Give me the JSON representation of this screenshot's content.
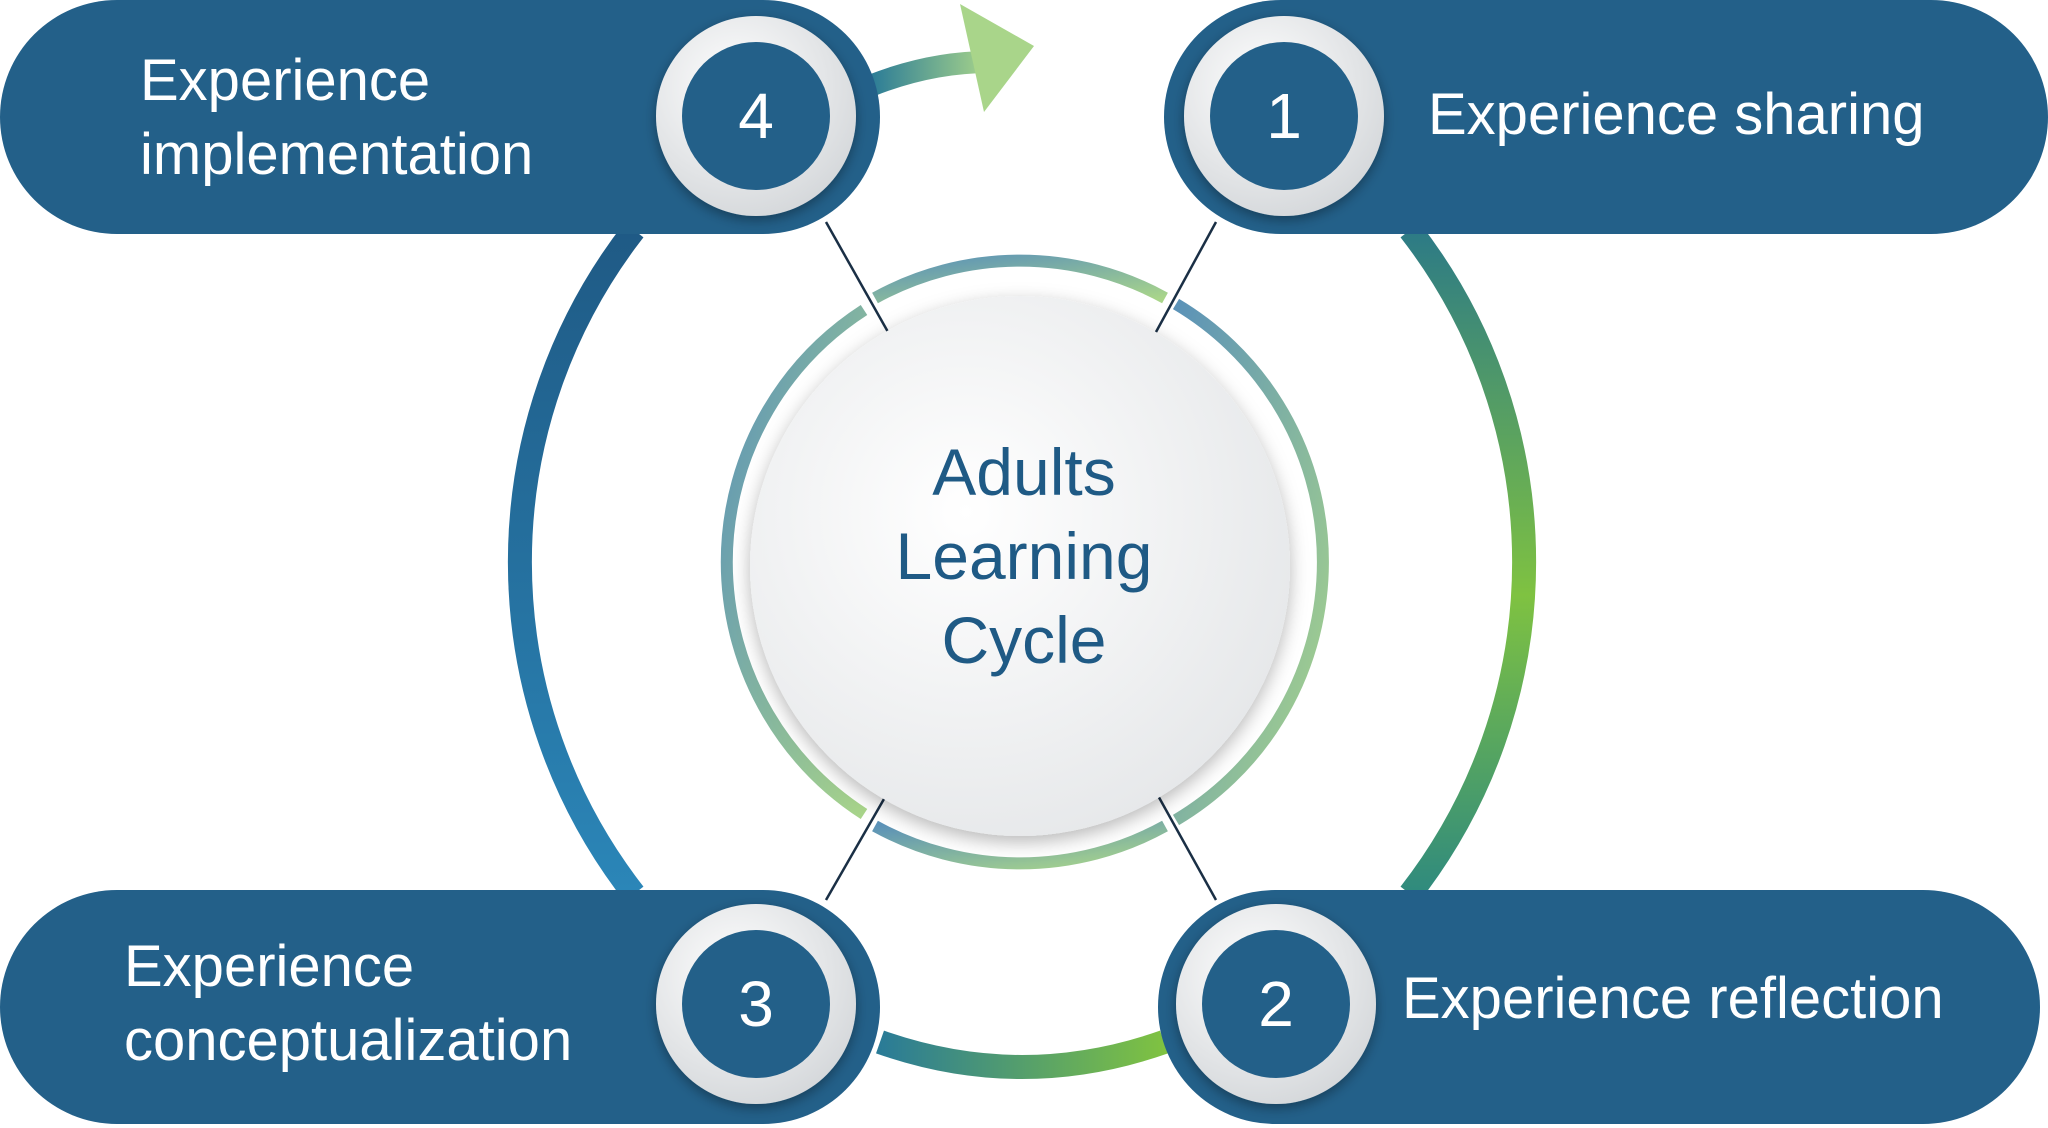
{
  "center": {
    "lines": [
      "Adults",
      "Learning",
      "Cycle"
    ]
  },
  "stages": [
    {
      "number": "1",
      "lines": [
        "Experience sharing"
      ]
    },
    {
      "number": "2",
      "lines": [
        "Experience reflection"
      ]
    },
    {
      "number": "3",
      "lines": [
        "Experience",
        "conceptualization"
      ]
    },
    {
      "number": "4",
      "lines": [
        "Experience",
        "implementation"
      ]
    }
  ],
  "colors": {
    "box": "#236089",
    "box_dark": "#1c527a",
    "title_text": "#1f5a85",
    "ring_blue": "#2a6f98",
    "ring_green": "#7fc241",
    "inner_ring_blue": "#5b92b8",
    "inner_ring_green": "#a9d58a",
    "connector": "#1a2f45"
  },
  "icons": {
    "cycle_arrow": "arrow-right-icon"
  }
}
